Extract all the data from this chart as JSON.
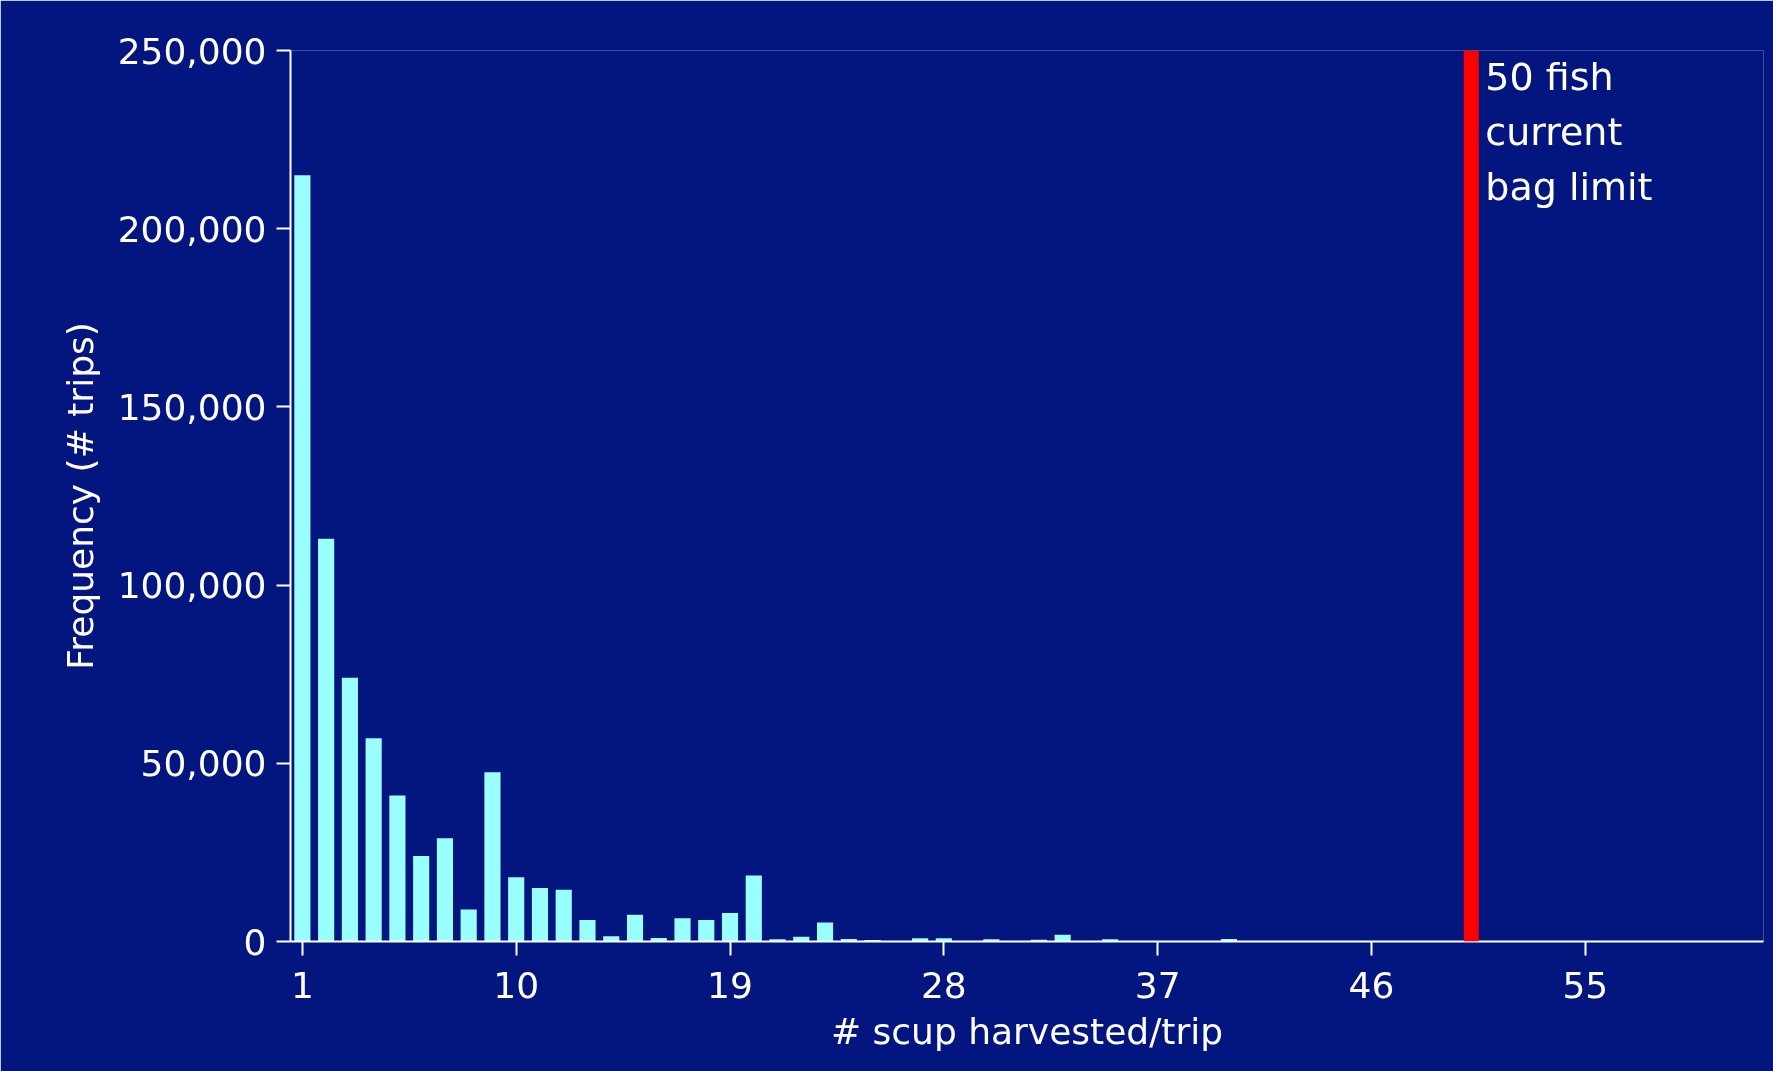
{
  "chart_data": {
    "type": "bar",
    "xlabel": "# scup harvested/trip",
    "ylabel": "Frequency (# trips)",
    "x": [
      1,
      2,
      3,
      4,
      5,
      6,
      7,
      8,
      9,
      10,
      11,
      12,
      13,
      14,
      15,
      16,
      17,
      18,
      19,
      20,
      21,
      22,
      23,
      24,
      25,
      26,
      27,
      28,
      29,
      30,
      31,
      32,
      33,
      34,
      35,
      36,
      37,
      38,
      39,
      40,
      41,
      42,
      43,
      44,
      45,
      46,
      47,
      48,
      49,
      50,
      51,
      52,
      53,
      54,
      55,
      56,
      57,
      58,
      59,
      60,
      61,
      62
    ],
    "values": [
      215000,
      113000,
      74000,
      57000,
      41000,
      24000,
      29000,
      9000,
      47500,
      18000,
      15000,
      14500,
      6000,
      1500,
      7500,
      1000,
      6500,
      6000,
      8000,
      18500,
      600,
      1300,
      5300,
      700,
      400,
      0,
      900,
      900,
      0,
      600,
      0,
      500,
      1900,
      0,
      600,
      0,
      0,
      0,
      0,
      700,
      0,
      0,
      0,
      0,
      null,
      0,
      0,
      null,
      0,
      0,
      null,
      0,
      0,
      0,
      0,
      0,
      null,
      0,
      0,
      0,
      0,
      0
    ],
    "color": "#99ffff",
    "xlim": [
      0.5,
      62.5
    ],
    "xticks": [
      1,
      10,
      19,
      28,
      37,
      46,
      55
    ],
    "ylim": [
      0,
      250000
    ],
    "yticks": [
      0,
      {
        "value": 50000,
        "label": "50,000"
      },
      {
        "value": 100000,
        "label": "100,000"
      },
      {
        "value": 150000,
        "label": "150,000"
      },
      {
        "value": 200000,
        "label": "200,000"
      },
      {
        "value": 250000,
        "label": "250,000"
      }
    ],
    "ref_lines": [
      {
        "axis": "x",
        "value": 50.2,
        "label": "50 fish\ncurrent\nbag limit",
        "color": "#ff0000"
      }
    ]
  }
}
